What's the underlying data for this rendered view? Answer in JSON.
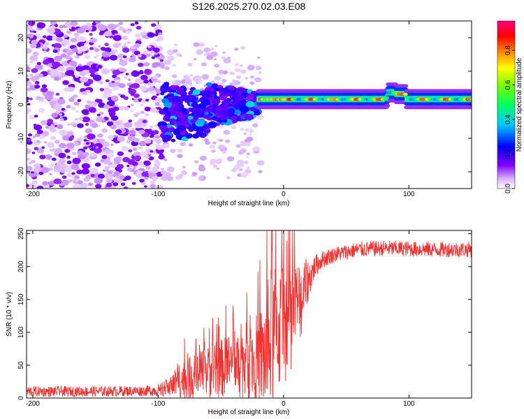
{
  "figure_title": "S126.2025.270.02.03.E08",
  "chart_data": [
    {
      "type": "heatmap",
      "title": "S126.2025.270.02.03.E08",
      "xlabel": "Height of straight line (km)",
      "ylabel": "Frequency (Hz)",
      "xlim": [
        -205,
        150
      ],
      "ylim": [
        -25,
        25
      ],
      "xticks": [
        -200,
        -100,
        0,
        100
      ],
      "yticks": [
        -20,
        -10,
        0,
        10,
        20
      ],
      "xtick_labels": [
        "-200",
        "-100",
        "0",
        "100"
      ],
      "ytick_labels": [
        "-20",
        "-10",
        "0",
        "10",
        "20"
      ],
      "colorbar": {
        "label": "Normalized spectral amplitude",
        "range": [
          0,
          0.97
        ],
        "ticks": [
          0,
          0.2,
          0.4,
          0.6,
          0.8
        ],
        "tick_labels": [
          "0.0",
          "0.2",
          "0.4",
          "0.6",
          "0.8"
        ],
        "colormap": [
          "#ffffff",
          "#8000ff",
          "#0000ff",
          "#00ffff",
          "#00ff00",
          "#ffff00",
          "#ff8000",
          "#ff0000",
          "#ff0080"
        ]
      },
      "features": [
        {
          "name": "noise",
          "x_range": [
            -205,
            -97
          ],
          "freq_range": [
            -25,
            25
          ],
          "amplitude": 0.05
        },
        {
          "name": "transition",
          "x_range": [
            -97,
            -20
          ],
          "center_freq": 0,
          "spread_hz": 9,
          "amplitude": 0.2
        },
        {
          "name": "carrier",
          "x_range": [
            -20,
            150
          ],
          "center_freq": 1.5,
          "amplitude": 0.85
        }
      ]
    },
    {
      "type": "line",
      "xlabel": "Height of straight line (km)",
      "ylabel": "SNR (10 * v/v)",
      "xlim": [
        -205,
        150
      ],
      "ylim": [
        0,
        255
      ],
      "xticks": [
        -200,
        -100,
        0,
        100
      ],
      "yticks": [
        0,
        50,
        100,
        150,
        200,
        250
      ],
      "xtick_labels": [
        "-200",
        "-100",
        "0",
        "100"
      ],
      "ytick_labels": [
        "0",
        "50",
        "100",
        "150",
        "200",
        "250"
      ],
      "color": "#ee3333",
      "series": [
        {
          "name": "SNR",
          "x": [
            -205,
            -150,
            -110,
            -100,
            -92,
            -86,
            -80,
            -70,
            -60,
            -50,
            -40,
            -30,
            -25,
            -20,
            -15,
            -12,
            -10,
            -5,
            0,
            5,
            10,
            15,
            20,
            25,
            30,
            40,
            50,
            60,
            80,
            100,
            120,
            150
          ],
          "y": [
            10,
            10,
            11,
            12,
            16,
            22,
            28,
            32,
            40,
            45,
            52,
            55,
            58,
            60,
            65,
            70,
            90,
            105,
            110,
            115,
            140,
            155,
            180,
            200,
            210,
            218,
            222,
            226,
            228,
            227,
            226,
            226
          ],
          "spread": [
            8,
            8,
            8,
            10,
            14,
            22,
            30,
            35,
            40,
            45,
            50,
            60,
            65,
            70,
            90,
            100,
            110,
            100,
            90,
            80,
            70,
            60,
            30,
            18,
            14,
            12,
            12,
            12,
            12,
            12,
            12,
            12
          ]
        }
      ]
    }
  ]
}
